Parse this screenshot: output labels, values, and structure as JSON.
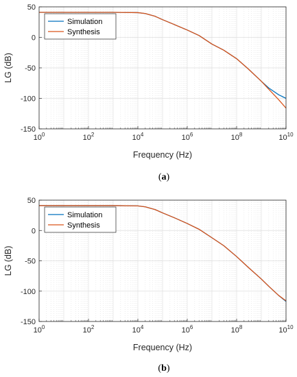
{
  "chart_data": [
    {
      "type": "line",
      "caption": "(a)",
      "xlabel": "Frequency (Hz)",
      "ylabel": "LG (dB)",
      "xscale": "log",
      "xlim": [
        1,
        10000000000
      ],
      "ylim": [
        -150,
        50
      ],
      "xticks": [
        1,
        100,
        10000,
        1000000,
        100000000,
        10000000000
      ],
      "xtick_labels": [
        {
          "base": "10",
          "exp": "0"
        },
        {
          "base": "10",
          "exp": "2"
        },
        {
          "base": "10",
          "exp": "4"
        },
        {
          "base": "10",
          "exp": "6"
        },
        {
          "base": "10",
          "exp": "8"
        },
        {
          "base": "10",
          "exp": "10"
        }
      ],
      "yticks": [
        50,
        0,
        -50,
        -100,
        -150
      ],
      "ytick_labels": [
        "50",
        "0",
        "-50",
        "-100",
        "-150"
      ],
      "grid": true,
      "legend_position": "top-left",
      "series": [
        {
          "name": "Simulation",
          "color": "#0072BD",
          "x": [
            1,
            10,
            100,
            1000,
            10000,
            20000,
            50000,
            100000,
            300000,
            1000000,
            3000000,
            10000000,
            30000000,
            100000000,
            300000000,
            1000000000,
            2000000000,
            5000000000,
            10000000000
          ],
          "y": [
            41,
            41,
            41,
            41,
            40.5,
            39,
            34.5,
            29,
            21,
            12,
            3,
            -11,
            -21,
            -35,
            -52,
            -72,
            -83,
            -94,
            -100
          ]
        },
        {
          "name": "Synthesis",
          "color": "#D95319",
          "x": [
            1,
            10,
            100,
            1000,
            10000,
            20000,
            50000,
            100000,
            300000,
            1000000,
            3000000,
            10000000,
            30000000,
            100000000,
            300000000,
            1000000000,
            2000000000,
            5000000000,
            10000000000
          ],
          "y": [
            41,
            41,
            41,
            41,
            40.5,
            39,
            34.5,
            29,
            21,
            12,
            3,
            -11,
            -21,
            -35,
            -52,
            -72,
            -85,
            -102,
            -116
          ]
        }
      ]
    },
    {
      "type": "line",
      "caption": "(b)",
      "xlabel": "Frequency (Hz)",
      "ylabel": "LG (dB)",
      "xscale": "log",
      "xlim": [
        1,
        10000000000
      ],
      "ylim": [
        -150,
        50
      ],
      "xticks": [
        1,
        100,
        10000,
        1000000,
        100000000,
        10000000000
      ],
      "xtick_labels": [
        {
          "base": "10",
          "exp": "0"
        },
        {
          "base": "10",
          "exp": "2"
        },
        {
          "base": "10",
          "exp": "4"
        },
        {
          "base": "10",
          "exp": "6"
        },
        {
          "base": "10",
          "exp": "8"
        },
        {
          "base": "10",
          "exp": "10"
        }
      ],
      "yticks": [
        50,
        0,
        -50,
        -100,
        -150
      ],
      "ytick_labels": [
        "50",
        "0",
        "-50",
        "-100",
        "-150"
      ],
      "grid": true,
      "legend_position": "top-left",
      "series": [
        {
          "name": "Simulation",
          "color": "#0072BD",
          "x": [
            1,
            10,
            100,
            1000,
            10000,
            20000,
            50000,
            100000,
            300000,
            1000000,
            3000000,
            10000000,
            30000000,
            100000000,
            300000000,
            1000000000,
            2000000000,
            5000000000,
            10000000000
          ],
          "y": [
            41,
            41,
            41,
            41,
            40.5,
            39,
            34.5,
            29,
            21,
            11.5,
            2,
            -12,
            -25,
            -43,
            -61,
            -80,
            -92,
            -107,
            -117
          ]
        },
        {
          "name": "Synthesis",
          "color": "#D95319",
          "x": [
            1,
            10,
            100,
            1000,
            10000,
            20000,
            50000,
            100000,
            300000,
            1000000,
            3000000,
            10000000,
            30000000,
            100000000,
            300000000,
            1000000000,
            2000000000,
            5000000000,
            10000000000
          ],
          "y": [
            41,
            41,
            41,
            41,
            40.5,
            39,
            34.5,
            29,
            21,
            11.5,
            2,
            -12,
            -25,
            -43,
            -61,
            -80,
            -92,
            -107,
            -116
          ]
        }
      ]
    }
  ]
}
